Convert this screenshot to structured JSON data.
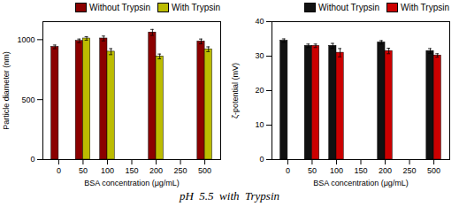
{
  "title": "pH  5.5  with  Trypsin",
  "chart_data": [
    {
      "type": "bar",
      "xlabel": "BSA concentration (μg/mL)",
      "ylabel": "Particle diameter (nm)",
      "categories": [
        0,
        50,
        100,
        150,
        200,
        250,
        500
      ],
      "series": [
        {
          "name": "Without Trypsin",
          "color": "#8B0000",
          "values": [
            940,
            990,
            1010,
            null,
            1060,
            null,
            985
          ],
          "errors": [
            15,
            15,
            20,
            null,
            25,
            null,
            20
          ]
        },
        {
          "name": "With Trypsin",
          "color": "#BCBC00",
          "values": [
            null,
            1010,
            900,
            null,
            860,
            null,
            920
          ],
          "errors": [
            null,
            15,
            25,
            null,
            20,
            null,
            20
          ]
        }
      ],
      "ylim": [
        0,
        1150
      ],
      "yticks": [
        0,
        500,
        1000
      ],
      "legend": "upper right"
    },
    {
      "type": "bar",
      "xlabel": "BSA concentration (μg/mL)",
      "ylabel": "ζ-potential (mV)",
      "categories": [
        0,
        50,
        100,
        150,
        200,
        250,
        500
      ],
      "series": [
        {
          "name": "Without Trypsin",
          "color": "#111111",
          "values": [
            34.5,
            33.0,
            33.0,
            null,
            34.0,
            null,
            31.5
          ],
          "errors": [
            0.5,
            0.5,
            0.7,
            null,
            0.5,
            null,
            0.7
          ]
        },
        {
          "name": "With Trypsin",
          "color": "#CC0000",
          "values": [
            null,
            33.0,
            31.0,
            null,
            31.5,
            null,
            30.2
          ],
          "errors": [
            null,
            0.5,
            1.2,
            null,
            0.8,
            null,
            0.5
          ]
        }
      ],
      "ylim": [
        0,
        40
      ],
      "yticks": [
        0,
        10,
        20,
        30,
        40
      ],
      "legend": "upper right"
    }
  ]
}
